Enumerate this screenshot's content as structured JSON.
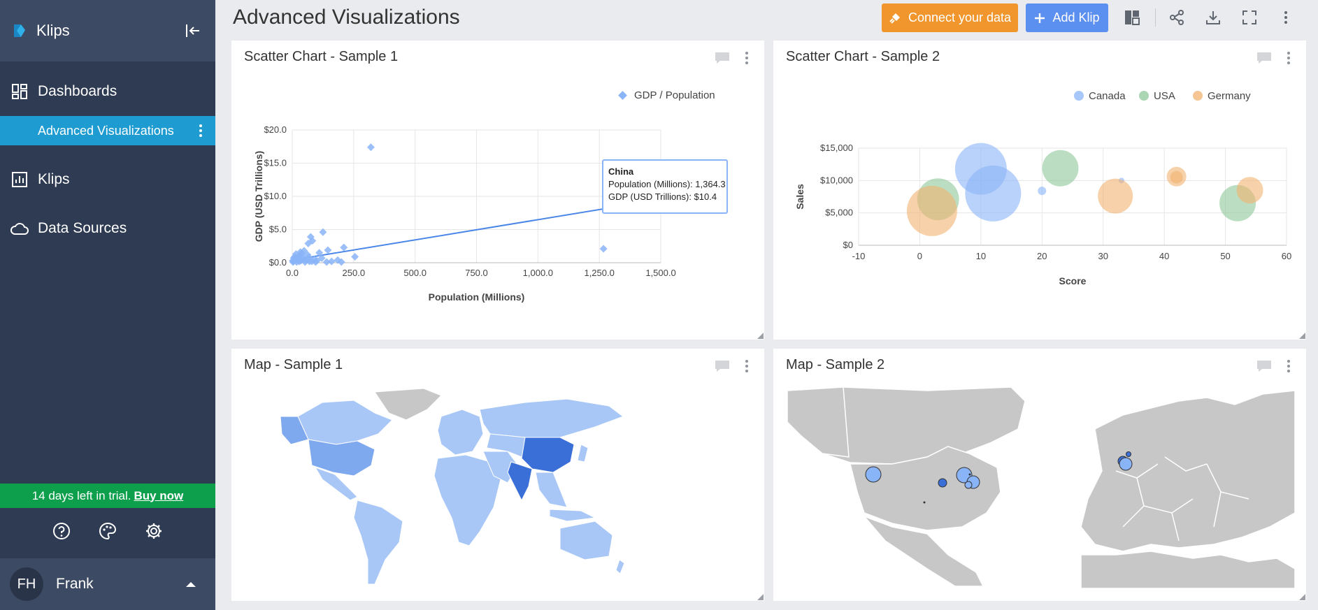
{
  "app": {
    "brand": "Klips",
    "page_title": "Advanced Visualizations"
  },
  "sidebar": {
    "nav": [
      {
        "label": "Dashboards",
        "icon": "dashboards-icon"
      },
      {
        "label": "Klips",
        "icon": "chart-icon"
      },
      {
        "label": "Data Sources",
        "icon": "cloud-icon"
      }
    ],
    "active_dashboard": "Advanced Visualizations",
    "trial_text": "14 days left in trial.",
    "trial_link": "Buy now",
    "user_initials": "FH",
    "user_name": "Frank"
  },
  "toolbar": {
    "connect_label": "Connect your data",
    "add_label": "Add Klip"
  },
  "colors": {
    "sidebar": "#2f3b52",
    "accent": "#1e9bd0",
    "connect": "#f0962d",
    "add": "#5b8ff0",
    "trial": "#0e9f4d",
    "canada": "#8ab4f8",
    "usa": "#8ec89a",
    "germany": "#f2b36f",
    "scatter_point": "#8ab4f8",
    "trend": "#4a86e8",
    "map_land": "#c7c7c7",
    "map_light": "#a8c7f7",
    "map_mid": "#7fa9ee",
    "map_dark": "#3a6fd8"
  },
  "panels": {
    "scatter1_title": "Scatter Chart - Sample 1",
    "scatter2_title": "Scatter Chart - Sample 2",
    "map1_title": "Map - Sample 1",
    "map2_title": "Map - Sample 2"
  },
  "tooltip": {
    "country": "China",
    "line1": "Population (Millions): 1,364.3",
    "line2": "GDP (USD Trillions): $10.4"
  },
  "chart_data": [
    {
      "type": "scatter",
      "xlabel": "Population (Millions)",
      "ylabel": "GDP (USD Trillions)",
      "legend": [
        "GDP / Population"
      ],
      "legend_position": "top-right",
      "xlim": [
        0,
        1500
      ],
      "ylim": [
        0,
        20
      ],
      "x_ticks": [
        "0.0",
        "250.0",
        "500.0",
        "750.0",
        "1,000.0",
        "1,250.0",
        "1,500.0"
      ],
      "y_ticks": [
        "$0.0",
        "$5.0",
        "$10.0",
        "$15.0",
        "$20.0"
      ],
      "grid": true,
      "series": [
        {
          "name": "GDP / Population",
          "points": [
            [
              320,
              17.4
            ],
            [
              1364.3,
              10.4
            ],
            [
              1267,
              2.1
            ],
            [
              125,
              4.6
            ],
            [
              75,
              3.9
            ],
            [
              65,
              2.9
            ],
            [
              210,
              2.3
            ],
            [
              145,
              1.9
            ],
            [
              110,
              1.5
            ],
            [
              82,
              3.3
            ],
            [
              48,
              1.8
            ],
            [
              38,
              1.4
            ],
            [
              30,
              1.1
            ],
            [
              22,
              0.8
            ],
            [
              17,
              0.6
            ],
            [
              12,
              0.4
            ],
            [
              8,
              0.3
            ],
            [
              5,
              0.2
            ],
            [
              3,
              0.1
            ],
            [
              10,
              0.9
            ],
            [
              26,
              0.5
            ],
            [
              35,
              0.3
            ],
            [
              44,
              0.6
            ],
            [
              55,
              0.4
            ],
            [
              62,
              1.2
            ],
            [
              70,
              0.2
            ],
            [
              90,
              0.5
            ],
            [
              100,
              0.3
            ],
            [
              160,
              0.2
            ],
            [
              185,
              0.4
            ],
            [
              255,
              0.9
            ],
            [
              120,
              0.7
            ],
            [
              15,
              1.3
            ],
            [
              6,
              0.7
            ],
            [
              2,
              0.3
            ],
            [
              28,
              0.2
            ],
            [
              40,
              0.9
            ],
            [
              52,
              0.1
            ],
            [
              68,
              0.8
            ],
            [
              80,
              0.2
            ],
            [
              95,
              0.1
            ],
            [
              200,
              0.1
            ],
            [
              140,
              0.1
            ],
            [
              18,
              0.1
            ],
            [
              33,
              1.6
            ]
          ]
        }
      ],
      "trendline": [
        [
          0,
          0.4
        ],
        [
          1364,
          8.7
        ]
      ]
    },
    {
      "type": "scatter",
      "xlabel": "Score",
      "ylabel": "Sales",
      "legend": [
        "Canada",
        "USA",
        "Germany"
      ],
      "legend_position": "top-right",
      "xlim": [
        -10,
        60
      ],
      "ylim": [
        0,
        15000
      ],
      "x_ticks": [
        "-10",
        "0",
        "10",
        "20",
        "30",
        "40",
        "50",
        "60"
      ],
      "y_ticks": [
        "$0",
        "$5,000",
        "$10,000",
        "$15,000"
      ],
      "grid": true,
      "series": [
        {
          "name": "Canada",
          "points": [
            {
              "x": 10,
              "y": 11800,
              "size": 37
            },
            {
              "x": 12,
              "y": 8000,
              "size": 40
            },
            {
              "x": 20,
              "y": 8400,
              "size": 6
            },
            {
              "x": 33,
              "y": 10000,
              "size": 4
            }
          ]
        },
        {
          "name": "USA",
          "points": [
            {
              "x": 3,
              "y": 7100,
              "size": 30
            },
            {
              "x": 23,
              "y": 11900,
              "size": 26
            },
            {
              "x": 52,
              "y": 6500,
              "size": 26
            }
          ]
        },
        {
          "name": "Germany",
          "points": [
            {
              "x": 2,
              "y": 5300,
              "size": 36
            },
            {
              "x": 32,
              "y": 7600,
              "size": 25
            },
            {
              "x": 42,
              "y": 10600,
              "size": 14
            },
            {
              "x": 42,
              "y": 10500,
              "size": 9
            },
            {
              "x": 54,
              "y": 8500,
              "size": 19
            }
          ]
        }
      ]
    }
  ]
}
